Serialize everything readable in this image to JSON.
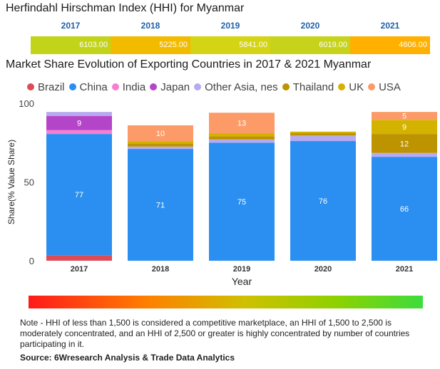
{
  "hhi": {
    "title": "Herfindahl Hirschman Index (HHI) for Myanmar",
    "cells": [
      {
        "year": "2017",
        "value": "6103.00",
        "color": "#c2d41a"
      },
      {
        "year": "2018",
        "value": "5225.00",
        "color": "#f2bb00"
      },
      {
        "year": "2019",
        "value": "5841.00",
        "color": "#d4d314"
      },
      {
        "year": "2020",
        "value": "6019.00",
        "color": "#c6d31a"
      },
      {
        "year": "2021",
        "value": "4606.00",
        "color": "#ffb000"
      }
    ]
  },
  "chart_data": {
    "type": "bar",
    "stacked": true,
    "title": "Market Share Evolution of Exporting Countries in 2017 & 2021 Myanmar",
    "xlabel": "Year",
    "ylabel": "Share(% Value Share)",
    "ylim": [
      0,
      100
    ],
    "yticks": [
      "0",
      "50",
      "100"
    ],
    "categories": [
      "2017",
      "2018",
      "2019",
      "2020",
      "2021"
    ],
    "series": [
      {
        "name": "Brazil",
        "color": "#dd4b57",
        "values": [
          3.5,
          0,
          0,
          0,
          0
        ],
        "labels": [
          "",
          "",
          "",
          "",
          ""
        ]
      },
      {
        "name": "China",
        "color": "#2a8ff0",
        "values": [
          77,
          71,
          75,
          76,
          66
        ],
        "labels": [
          "77",
          "71",
          "75",
          "76",
          "66"
        ]
      },
      {
        "name": "India",
        "color": "#f57fd3",
        "values": [
          2.5,
          0,
          0,
          0,
          0
        ],
        "labels": [
          "",
          "",
          "",
          "",
          ""
        ]
      },
      {
        "name": "Japan",
        "color": "#b545c8",
        "values": [
          9,
          0,
          0,
          0,
          0
        ],
        "labels": [
          "9",
          "",
          "",
          "",
          ""
        ]
      },
      {
        "name": "Other Asia, nes",
        "color": "#b7aaf0",
        "values": [
          2.5,
          1.5,
          2,
          3.5,
          2.5
        ],
        "labels": [
          "",
          "",
          "",
          "",
          ""
        ]
      },
      {
        "name": "Thailand",
        "color": "#bd9400",
        "values": [
          0,
          2,
          2,
          1.5,
          12
        ],
        "labels": [
          "",
          "",
          "",
          "",
          "12"
        ]
      },
      {
        "name": "UK",
        "color": "#d4b300",
        "values": [
          0,
          1.5,
          2,
          1,
          9
        ],
        "labels": [
          "",
          "",
          "",
          "",
          "9"
        ]
      },
      {
        "name": "USA",
        "color": "#fc9b68",
        "values": [
          0,
          10,
          13,
          0,
          5
        ],
        "labels": [
          "",
          "10",
          "13",
          "",
          "5"
        ]
      }
    ]
  },
  "footer": {
    "note": "Note - HHI of less than 1,500 is considered a competitive marketplace, an HHI of 1,500 to 2,500 is moderately concentrated, and an HHI of 2,500 or greater is highly concentrated by number of countries participating in it.",
    "source": "Source: 6Wresearch Analysis & Trade Data Analytics"
  }
}
